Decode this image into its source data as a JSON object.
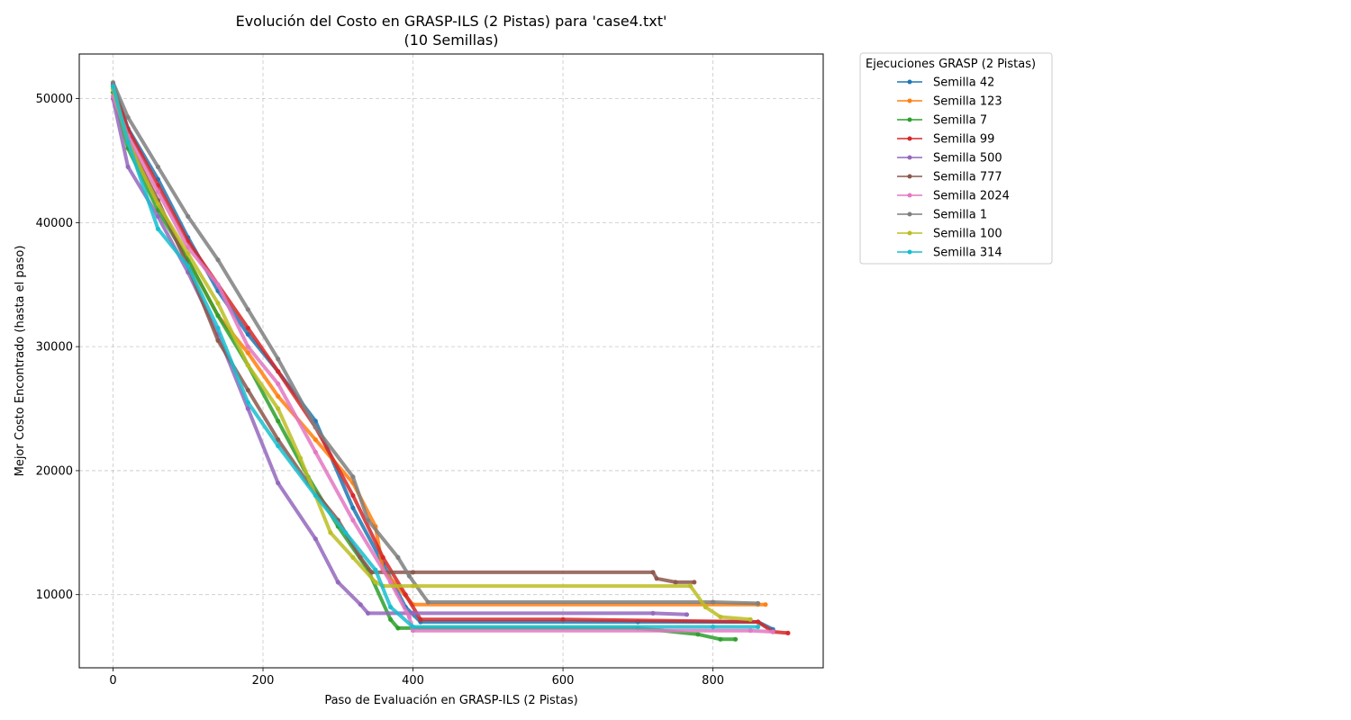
{
  "chart_data": {
    "type": "line",
    "title": "Evolución del Costo en GRASP-ILS (2 Pistas) para 'case4.txt'",
    "subtitle": "(10 Semillas)",
    "xlabel": "Paso de Evaluación en GRASP-ILS (2 Pistas)",
    "ylabel": "Mejor Costo Encontrado (hasta el paso)",
    "xlim": [
      -45,
      947
    ],
    "ylim": [
      4100,
      53600
    ],
    "xticks": [
      0,
      200,
      400,
      600,
      800
    ],
    "yticks": [
      10000,
      20000,
      30000,
      40000,
      50000
    ],
    "grid": true,
    "legend": {
      "title": "Ejecuciones GRASP (2 Pistas)",
      "position": "outside-top-right"
    },
    "series": [
      {
        "name": "Semilla 42",
        "color": "#1f77b4",
        "x": [
          0,
          20,
          60,
          100,
          140,
          180,
          220,
          270,
          320,
          360,
          390,
          410,
          700,
          860,
          880
        ],
        "y": [
          51200,
          47600,
          43500,
          38800,
          34500,
          31000,
          28000,
          24000,
          17000,
          12500,
          9000,
          7800,
          7800,
          7800,
          7200
        ]
      },
      {
        "name": "Semilla 123",
        "color": "#ff7f0e",
        "x": [
          0,
          20,
          60,
          100,
          140,
          180,
          220,
          270,
          320,
          350,
          360,
          400,
          860,
          870
        ],
        "y": [
          51000,
          46800,
          41500,
          37000,
          32500,
          29500,
          26000,
          22500,
          19000,
          15500,
          12000,
          9200,
          9200,
          9200
        ]
      },
      {
        "name": "Semilla 7",
        "color": "#2ca02c",
        "x": [
          0,
          20,
          60,
          100,
          140,
          180,
          220,
          260,
          300,
          340,
          370,
          380,
          700,
          780,
          810,
          830
        ],
        "y": [
          50500,
          46000,
          41000,
          37000,
          32500,
          28500,
          24000,
          19500,
          15500,
          12000,
          8000,
          7300,
          7300,
          6800,
          6400,
          6400
        ]
      },
      {
        "name": "Semilla 99",
        "color": "#d62728",
        "x": [
          0,
          20,
          60,
          100,
          140,
          180,
          220,
          270,
          320,
          360,
          390,
          410,
          600,
          860,
          880,
          900
        ],
        "y": [
          51000,
          47500,
          43000,
          38500,
          35000,
          31500,
          28000,
          23500,
          18000,
          13000,
          10000,
          8000,
          8000,
          7800,
          7000,
          6900
        ]
      },
      {
        "name": "Semilla 500",
        "color": "#9467bd",
        "x": [
          0,
          20,
          60,
          100,
          140,
          180,
          220,
          270,
          300,
          330,
          340,
          400,
          720,
          765
        ],
        "y": [
          50000,
          44500,
          40500,
          36000,
          31000,
          25000,
          19000,
          14500,
          11000,
          9200,
          8500,
          8500,
          8500,
          8400
        ]
      },
      {
        "name": "Semilla 777",
        "color": "#8c564b",
        "x": [
          0,
          20,
          60,
          100,
          140,
          180,
          220,
          260,
          300,
          330,
          345,
          400,
          720,
          725,
          750,
          775
        ],
        "y": [
          50800,
          46500,
          41800,
          36500,
          30500,
          26500,
          22500,
          19000,
          16000,
          13000,
          11800,
          11800,
          11800,
          11300,
          11000,
          11000
        ]
      },
      {
        "name": "Semilla 2024",
        "color": "#e377c2",
        "x": [
          0,
          20,
          60,
          100,
          140,
          180,
          220,
          270,
          320,
          370,
          395,
          400,
          850,
          880
        ],
        "y": [
          50200,
          47000,
          42500,
          38000,
          35000,
          30000,
          27000,
          21500,
          16000,
          11000,
          8200,
          7100,
          7100,
          7000
        ]
      },
      {
        "name": "Semilla 1",
        "color": "#7f7f7f",
        "x": [
          0,
          20,
          60,
          100,
          140,
          180,
          220,
          270,
          320,
          340,
          380,
          395,
          420,
          800,
          860
        ],
        "y": [
          51300,
          48500,
          44500,
          40500,
          37000,
          33000,
          29000,
          23500,
          19500,
          16000,
          13000,
          11500,
          9400,
          9400,
          9300
        ]
      },
      {
        "name": "Semilla 100",
        "color": "#bcbd22",
        "x": [
          0,
          20,
          60,
          100,
          140,
          180,
          220,
          250,
          290,
          320,
          350,
          360,
          400,
          770,
          790,
          810,
          850
        ],
        "y": [
          50800,
          46500,
          41500,
          37500,
          33500,
          28500,
          25000,
          21000,
          15000,
          13000,
          11000,
          10700,
          10700,
          10700,
          9000,
          8200,
          8000
        ]
      },
      {
        "name": "Semilla 314",
        "color": "#17becf",
        "x": [
          0,
          20,
          60,
          100,
          140,
          180,
          220,
          270,
          310,
          350,
          370,
          400,
          800,
          860
        ],
        "y": [
          51000,
          46500,
          39500,
          36500,
          31500,
          25500,
          22000,
          18000,
          15000,
          12000,
          9000,
          7400,
          7400,
          7400
        ]
      }
    ]
  }
}
